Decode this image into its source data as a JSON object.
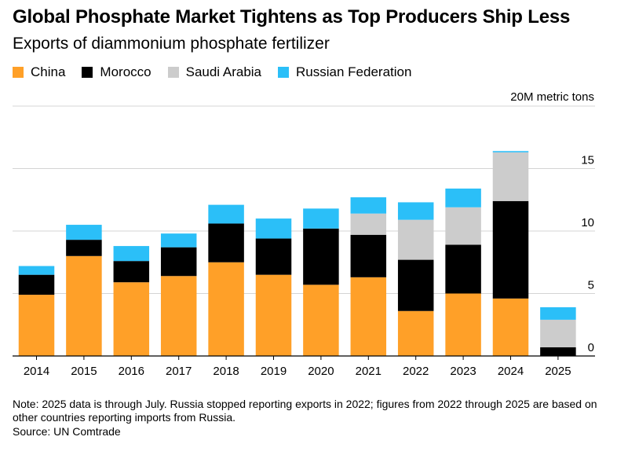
{
  "chart_data": {
    "type": "bar",
    "stacked": true,
    "title": "Global Phosphate Market Tightens as Top Producers Ship Less",
    "subtitle": "Exports of diammonium phosphate fertilizer",
    "unit_label": "20M metric tons",
    "categories": [
      "2014",
      "2015",
      "2016",
      "2017",
      "2018",
      "2019",
      "2020",
      "2021",
      "2022",
      "2023",
      "2024",
      "2025"
    ],
    "series": [
      {
        "name": "China",
        "color": "#ffa028",
        "values": [
          4.9,
          8.0,
          5.9,
          6.4,
          7.5,
          6.5,
          5.7,
          6.3,
          3.6,
          5.0,
          4.6,
          0.0
        ]
      },
      {
        "name": "Morocco",
        "color": "#000000",
        "values": [
          1.6,
          1.3,
          1.7,
          2.3,
          3.1,
          2.9,
          4.5,
          3.4,
          4.1,
          3.9,
          7.8,
          0.7
        ]
      },
      {
        "name": "Saudi Arabia",
        "color": "#cccccc",
        "values": [
          0.0,
          0.0,
          0.0,
          0.0,
          0.0,
          0.0,
          0.0,
          1.7,
          3.2,
          3.0,
          3.9,
          2.2
        ]
      },
      {
        "name": "Russian Federation",
        "color": "#2bbff8",
        "values": [
          0.7,
          1.2,
          1.2,
          1.1,
          1.5,
          1.6,
          1.6,
          1.3,
          1.4,
          1.5,
          0.1,
          1.0
        ]
      }
    ],
    "ylim": [
      0,
      20
    ],
    "yticks": [
      0,
      5,
      10,
      15
    ],
    "ytick_labels": [
      "0",
      "5",
      "10",
      "15"
    ],
    "grid": true,
    "legend_position": "top-left"
  },
  "note": "Note: 2025 data is through July. Russia stopped reporting exports in 2022; figures from 2022 through 2025 are based on other countries reporting imports from Russia.",
  "source": "Source: UN Comtrade"
}
